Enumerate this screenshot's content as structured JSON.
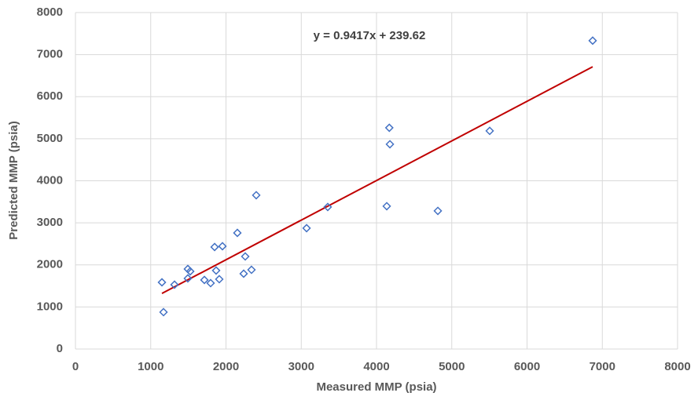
{
  "chart_data": {
    "type": "scatter",
    "x_label": "Measured MMP (psia)",
    "y_label": "Predicted MMP (psia)",
    "xlim": [
      0,
      8000
    ],
    "ylim": [
      0,
      8000
    ],
    "xticks": [
      0,
      1000,
      2000,
      3000,
      4000,
      5000,
      6000,
      7000,
      8000
    ],
    "yticks": [
      0,
      1000,
      2000,
      3000,
      4000,
      5000,
      6000,
      7000,
      8000
    ],
    "grid": true,
    "color": "#4472c4",
    "x": [
      6872,
      4170,
      4178,
      5504,
      2402,
      3352,
      4136,
      4815,
      3071,
      2151,
      1849,
      1953,
      2256,
      1493,
      1525,
      1869,
      2339,
      2235,
      1493,
      1713,
      1911,
      1796,
      1316,
      1149,
      1170
    ],
    "values": [
      7332,
      5260,
      4869,
      5187,
      3657,
      3377,
      3396,
      3284,
      2873,
      2761,
      2425,
      2444,
      2201,
      1903,
      1847,
      1866,
      1884,
      1791,
      1679,
      1642,
      1660,
      1567,
      1530,
      1586,
      877
    ],
    "trendline": {
      "label": "y = 0.9417x + 239.62",
      "slope": 0.9417,
      "intercept": 239.62,
      "color": "#c00000"
    }
  }
}
